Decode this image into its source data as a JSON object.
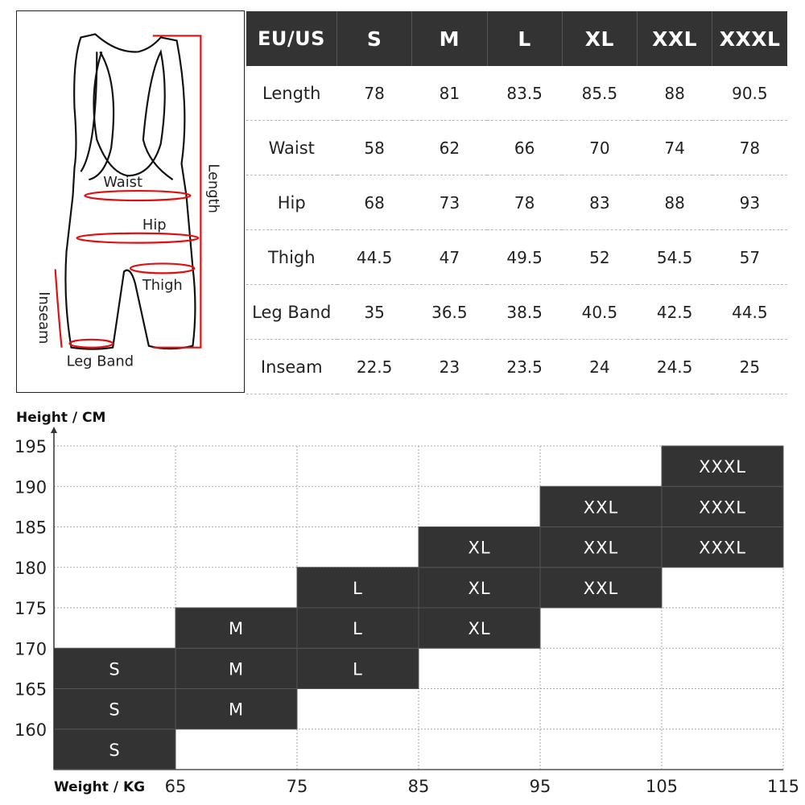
{
  "illustration": {
    "labels": {
      "waist": "Waist",
      "hip": "Hip",
      "thigh": "Thigh",
      "length": "Length",
      "inseam": "Inseam",
      "leg_band": "Leg Band"
    },
    "accent_color": "#e01010"
  },
  "size_table": {
    "header": [
      "EU/US",
      "S",
      "M",
      "L",
      "XL",
      "XXL",
      "XXXL"
    ],
    "rows": [
      {
        "label": "Length",
        "values": [
          "78",
          "81",
          "83.5",
          "85.5",
          "88",
          "90.5"
        ]
      },
      {
        "label": "Waist",
        "values": [
          "58",
          "62",
          "66",
          "70",
          "74",
          "78"
        ]
      },
      {
        "label": "Hip",
        "values": [
          "68",
          "73",
          "78",
          "83",
          "88",
          "93"
        ]
      },
      {
        "label": "Thigh",
        "values": [
          "44.5",
          "47",
          "49.5",
          "52",
          "54.5",
          "57"
        ]
      },
      {
        "label": "Leg Band",
        "values": [
          "35",
          "36.5",
          "38.5",
          "40.5",
          "42.5",
          "44.5"
        ]
      },
      {
        "label": "Inseam",
        "values": [
          "22.5",
          "23",
          "23.5",
          "24",
          "24.5",
          "25"
        ]
      }
    ],
    "header_color": "#333333"
  },
  "chart_data": {
    "type": "heatmap",
    "ylabel": "Height / CM",
    "xlabel": "Weight / KG",
    "xlim": [
      55,
      115
    ],
    "ylim": [
      155,
      195
    ],
    "x_ticks": [
      65,
      75,
      85,
      95,
      105,
      115
    ],
    "y_ticks": [
      160,
      165,
      170,
      175,
      180,
      185,
      190,
      195
    ],
    "grid": true,
    "cell_color": "#333333",
    "cells": [
      {
        "x": [
          55,
          65
        ],
        "y": [
          155,
          160
        ],
        "label": "S"
      },
      {
        "x": [
          55,
          65
        ],
        "y": [
          160,
          165
        ],
        "label": "S"
      },
      {
        "x": [
          55,
          65
        ],
        "y": [
          165,
          170
        ],
        "label": "S"
      },
      {
        "x": [
          65,
          75
        ],
        "y": [
          160,
          165
        ],
        "label": "M"
      },
      {
        "x": [
          65,
          75
        ],
        "y": [
          165,
          170
        ],
        "label": "M"
      },
      {
        "x": [
          65,
          75
        ],
        "y": [
          170,
          175
        ],
        "label": "M"
      },
      {
        "x": [
          75,
          85
        ],
        "y": [
          165,
          170
        ],
        "label": "L"
      },
      {
        "x": [
          75,
          85
        ],
        "y": [
          170,
          175
        ],
        "label": "L"
      },
      {
        "x": [
          75,
          85
        ],
        "y": [
          175,
          180
        ],
        "label": "L"
      },
      {
        "x": [
          85,
          95
        ],
        "y": [
          170,
          175
        ],
        "label": "XL"
      },
      {
        "x": [
          85,
          95
        ],
        "y": [
          175,
          180
        ],
        "label": "XL"
      },
      {
        "x": [
          85,
          95
        ],
        "y": [
          180,
          185
        ],
        "label": "XL"
      },
      {
        "x": [
          95,
          105
        ],
        "y": [
          175,
          180
        ],
        "label": "XXL"
      },
      {
        "x": [
          95,
          105
        ],
        "y": [
          180,
          185
        ],
        "label": "XXL"
      },
      {
        "x": [
          95,
          105
        ],
        "y": [
          185,
          190
        ],
        "label": "XXL"
      },
      {
        "x": [
          105,
          115
        ],
        "y": [
          180,
          185
        ],
        "label": "XXXL"
      },
      {
        "x": [
          105,
          115
        ],
        "y": [
          185,
          190
        ],
        "label": "XXXL"
      },
      {
        "x": [
          105,
          115
        ],
        "y": [
          190,
          195
        ],
        "label": "XXXL"
      }
    ]
  }
}
